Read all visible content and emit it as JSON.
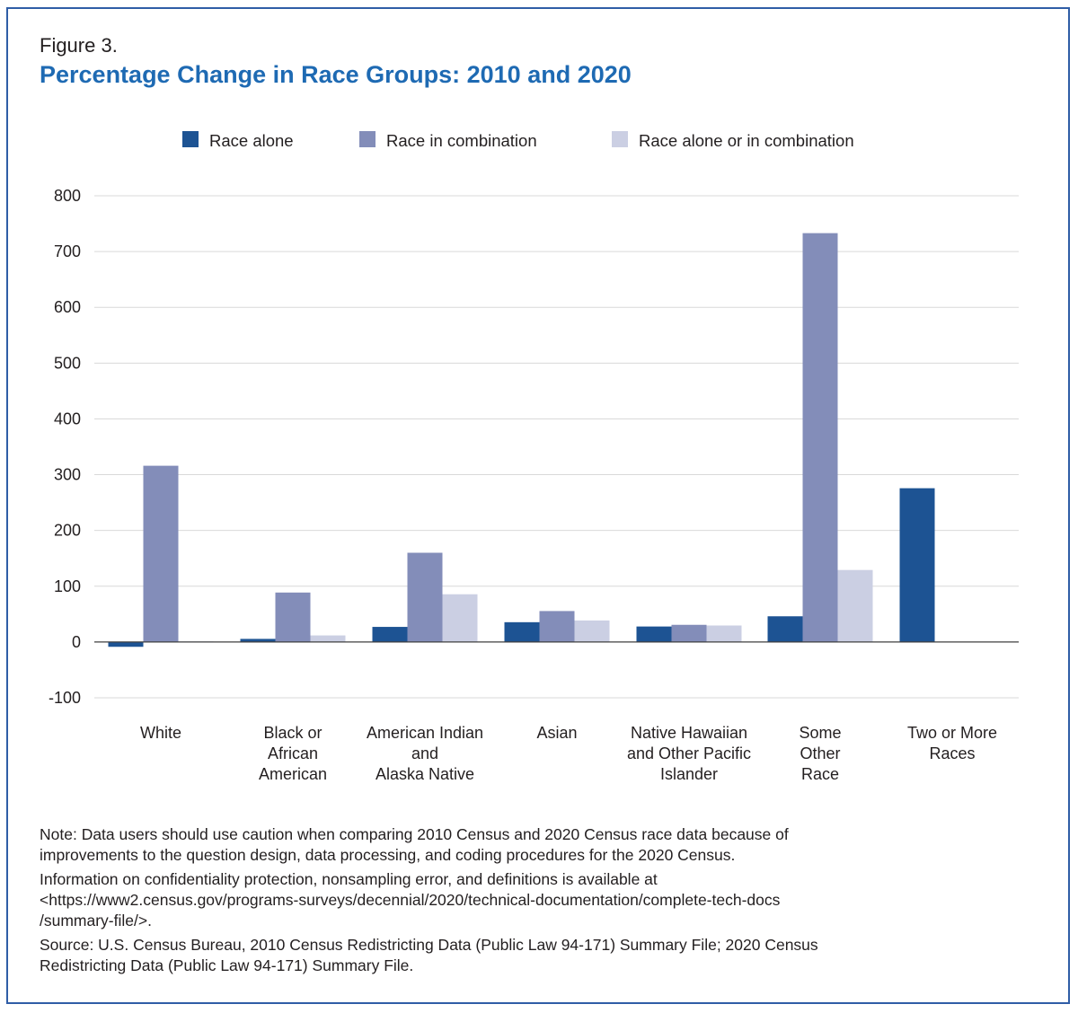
{
  "figure_label": "Figure 3.",
  "title": "Percentage Change in Race Groups: 2010 and 2020",
  "colors": {
    "race_alone": "#1d5393",
    "race_in_combination": "#838db9",
    "race_alone_or_in_combination": "#cbcfe3",
    "title": "#1e6ab3",
    "border": "#2f5da6",
    "gridline": "#d9d9d9"
  },
  "chart_data": {
    "type": "bar",
    "title": "Percentage Change in Race Groups: 2010 and 2020",
    "xlabel": "",
    "ylabel": "",
    "ylim": [
      -100,
      800
    ],
    "yticks": [
      800,
      700,
      600,
      500,
      400,
      300,
      200,
      100,
      0,
      -100
    ],
    "ytick_labels": [
      "800",
      "700",
      "600",
      "500",
      "400",
      "300",
      "200",
      "100",
      "0",
      "-100"
    ],
    "grid": true,
    "legend_position": "top",
    "categories": [
      [
        "White"
      ],
      [
        "Black or",
        "African",
        "American"
      ],
      [
        "American Indian",
        "and",
        "Alaska Native"
      ],
      [
        "Asian"
      ],
      [
        "Native Hawaiian",
        "and Other Pacific",
        "Islander"
      ],
      [
        "Some",
        "Other",
        "Race"
      ],
      [
        "Two or More",
        "Races"
      ]
    ],
    "series": [
      {
        "name": "Race alone",
        "values": [
          -8.6,
          5.6,
          27.1,
          35.5,
          27.8,
          46.1,
          275.7
        ]
      },
      {
        "name": "Race in combination",
        "values": [
          316.0,
          88.7,
          160.0,
          55.5,
          30.8,
          733.0,
          null
        ]
      },
      {
        "name": "Race alone or in combination",
        "values": [
          1.0,
          11.8,
          85.6,
          38.6,
          29.6,
          129.1,
          null
        ]
      }
    ]
  },
  "notes": {
    "note": "Note: Data users should use caution when comparing 2010 Census and 2020 Census race data because of\nimprovements to the question design, data processing, and coding procedures for the 2020 Census.",
    "info": "Information on confidentiality protection, nonsampling error, and definitions is available at\n<https://www2.census.gov/programs-surveys/decennial/2020/technical-documentation/complete-tech-docs\n/summary-file/>.",
    "source": "Source: U.S. Census Bureau, 2010 Census Redistricting Data (Public Law 94-171) Summary File; 2020 Census\nRedistricting Data (Public Law 94-171) Summary File."
  }
}
